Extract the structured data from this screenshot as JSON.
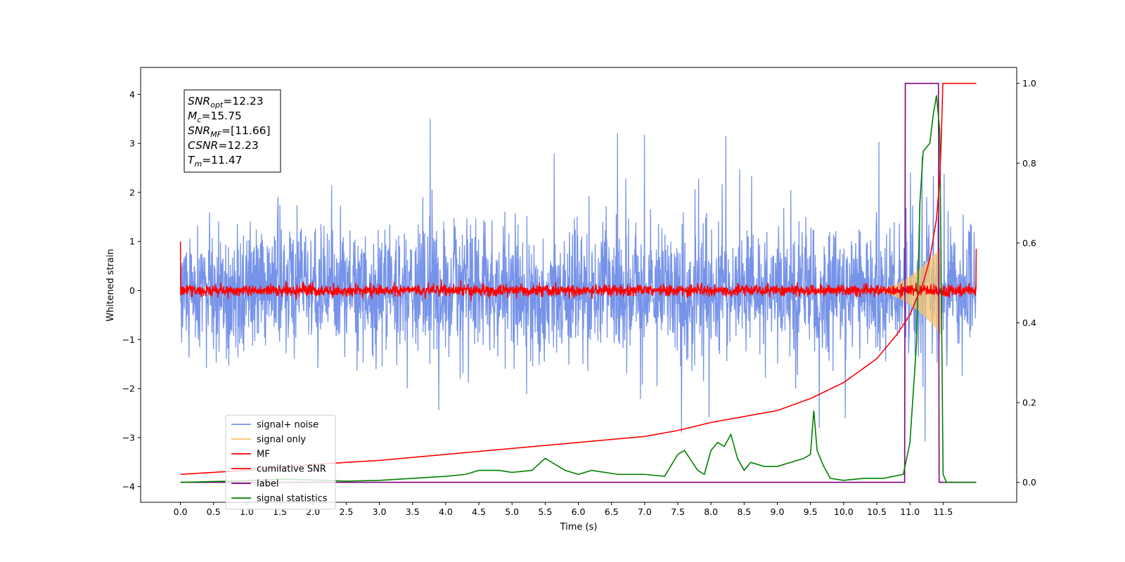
{
  "chart_data": {
    "type": "line",
    "xlabel": "Time (s)",
    "ylabel": "Whitened strain",
    "xlim": [
      -0.6,
      12.61
    ],
    "ylim": [
      -4.32,
      4.55
    ],
    "y2lim": [
      -0.05,
      1.04
    ],
    "x_ticks": [
      0.0,
      0.5,
      1.0,
      1.5,
      2.0,
      2.5,
      3.0,
      3.5,
      4.0,
      4.5,
      5.0,
      5.5,
      6.0,
      6.5,
      7.0,
      7.5,
      8.0,
      8.5,
      9.0,
      9.5,
      10.0,
      10.5,
      11.0,
      11.5
    ],
    "x_tick_labels": [
      "0.0",
      "0.5",
      "1.0",
      "1.5",
      "2.0",
      "2.5",
      "3.0",
      "3.5",
      "4.0",
      "4.5",
      "5.0",
      "5.5",
      "6.0",
      "6.5",
      "7.0",
      "7.5",
      "8.0",
      "8.5",
      "9.0",
      "9.5",
      "10.0",
      "10.5",
      "11.0",
      "11.5"
    ],
    "y_ticks": [
      -4,
      -3,
      -2,
      -1,
      0,
      1,
      2,
      3,
      4
    ],
    "y_tick_labels": [
      "−4",
      "−3",
      "−2",
      "−1",
      "0",
      "1",
      "2",
      "3",
      "4"
    ],
    "y2_ticks": [
      0.0,
      0.2,
      0.4,
      0.6,
      0.8,
      1.0
    ],
    "y2_tick_labels": [
      "0.0",
      "0.2",
      "0.4",
      "0.6",
      "0.8",
      "1.0"
    ],
    "grid": false,
    "legend_position": "bottom-left",
    "series": [
      {
        "name": "signal+ noise",
        "axis": "left",
        "color": "#4169e1",
        "kind": "noise_band",
        "x_range": [
          0.0,
          12.0
        ],
        "amplitude_std": 0.65,
        "spike_max": 3.5,
        "spike_min": -3.2,
        "chirp_onset": 10.3,
        "chirp_peak_time": 11.47
      },
      {
        "name": "signal only",
        "axis": "left",
        "color": "#f5c36b",
        "kind": "chirp",
        "start_time": 10.3,
        "peak_time": 11.47,
        "peak_amplitude": 0.9
      },
      {
        "name": "MF",
        "axis": "left",
        "color": "#ff0000",
        "kind": "noise_band",
        "x_range": [
          0.0,
          12.0
        ],
        "amplitude_std": 0.06,
        "start_value": 1.0,
        "end_value": 0.85
      },
      {
        "name": "cumilative SNR",
        "axis": "right",
        "color": "#ff0000",
        "x": [
          0.0,
          1.0,
          2.0,
          3.0,
          4.0,
          5.0,
          6.0,
          7.0,
          7.5,
          8.0,
          8.5,
          9.0,
          9.5,
          10.0,
          10.5,
          10.8,
          11.0,
          11.2,
          11.3,
          11.4,
          11.45,
          11.47,
          11.48,
          11.6,
          12.0
        ],
        "y": [
          0.02,
          0.03,
          0.045,
          0.055,
          0.07,
          0.085,
          0.1,
          0.115,
          0.13,
          0.15,
          0.165,
          0.18,
          0.21,
          0.25,
          0.31,
          0.37,
          0.42,
          0.5,
          0.56,
          0.66,
          0.76,
          0.82,
          1.0,
          1.0,
          1.0
        ]
      },
      {
        "name": "label",
        "axis": "right",
        "color": "#800080",
        "x": [
          0.0,
          10.92,
          10.93,
          11.43,
          11.44,
          12.0
        ],
        "y": [
          0.0,
          0.0,
          1.0,
          1.0,
          0.0,
          0.0
        ]
      },
      {
        "name": "signal statistics",
        "axis": "right",
        "color": "#008000",
        "x": [
          0.0,
          0.5,
          1.0,
          1.5,
          2.0,
          2.5,
          3.0,
          3.5,
          4.0,
          4.3,
          4.5,
          4.8,
          5.0,
          5.3,
          5.5,
          5.6,
          5.8,
          6.0,
          6.2,
          6.4,
          6.6,
          6.8,
          7.0,
          7.3,
          7.5,
          7.6,
          7.8,
          7.9,
          8.0,
          8.1,
          8.2,
          8.3,
          8.4,
          8.5,
          8.6,
          8.8,
          9.0,
          9.2,
          9.4,
          9.5,
          9.55,
          9.6,
          9.7,
          9.8,
          10.0,
          10.3,
          10.6,
          10.9,
          11.0,
          11.1,
          11.15,
          11.2,
          11.3,
          11.35,
          11.4,
          11.45,
          11.5,
          11.55,
          12.0
        ],
        "y": [
          0.0,
          0.002,
          0.004,
          0.008,
          0.006,
          0.003,
          0.005,
          0.01,
          0.015,
          0.02,
          0.03,
          0.03,
          0.025,
          0.03,
          0.06,
          0.05,
          0.03,
          0.02,
          0.03,
          0.025,
          0.02,
          0.02,
          0.02,
          0.015,
          0.07,
          0.08,
          0.03,
          0.02,
          0.08,
          0.1,
          0.09,
          0.12,
          0.06,
          0.03,
          0.05,
          0.04,
          0.04,
          0.05,
          0.06,
          0.07,
          0.18,
          0.08,
          0.04,
          0.01,
          0.005,
          0.01,
          0.01,
          0.02,
          0.1,
          0.35,
          0.7,
          0.83,
          0.85,
          0.92,
          0.97,
          0.88,
          0.02,
          0.0,
          0.0
        ]
      }
    ],
    "annotation": {
      "lines": [
        {
          "name": "SNR",
          "sub": "opt",
          "value": "=12.23"
        },
        {
          "name": "M",
          "sub": "c",
          "value": "=15.75"
        },
        {
          "name": "SNR",
          "sub": "MF",
          "value": "=[11.66]"
        },
        {
          "name": "CSNR",
          "sub": "",
          "value": "=12.23"
        },
        {
          "name": "T",
          "sub": "m",
          "value": "=11.47"
        }
      ]
    }
  }
}
